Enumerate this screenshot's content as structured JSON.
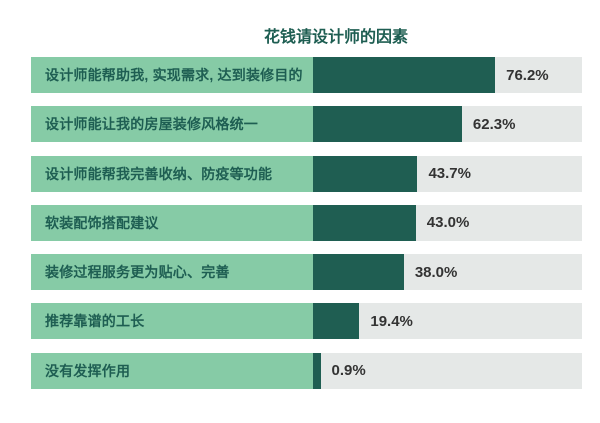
{
  "chart_data": {
    "type": "bar",
    "orientation": "horizontal",
    "title": "花钱请设计师的因素",
    "categories": [
      "设计师能帮助我, 实现需求, 达到装修目的",
      "设计师能让我的房屋装修风格统一",
      "设计师能帮我完善收纳、防疫等功能",
      "软装配饰搭配建议",
      "装修过程服务更为贴心、完善",
      "推荐靠谱的工长",
      "没有发挥作用"
    ],
    "values": [
      76.2,
      62.3,
      43.7,
      43.0,
      38.0,
      19.4,
      0.9
    ],
    "value_labels": [
      "76.2%",
      "62.3%",
      "43.7%",
      "43.0%",
      "38.0%",
      "19.4%",
      "0.9%"
    ],
    "xlabel": "",
    "ylabel": "",
    "xlim": [
      0,
      112
    ],
    "grid": false,
    "legend": false,
    "colors": {
      "page_background": "#ffffff",
      "category_box": "#86CBA6",
      "bar": "#1F5E52",
      "track": "#E5E8E7",
      "title_text": "#1E5E52",
      "category_text": "#1E5E52",
      "value_text": "#333333"
    }
  }
}
